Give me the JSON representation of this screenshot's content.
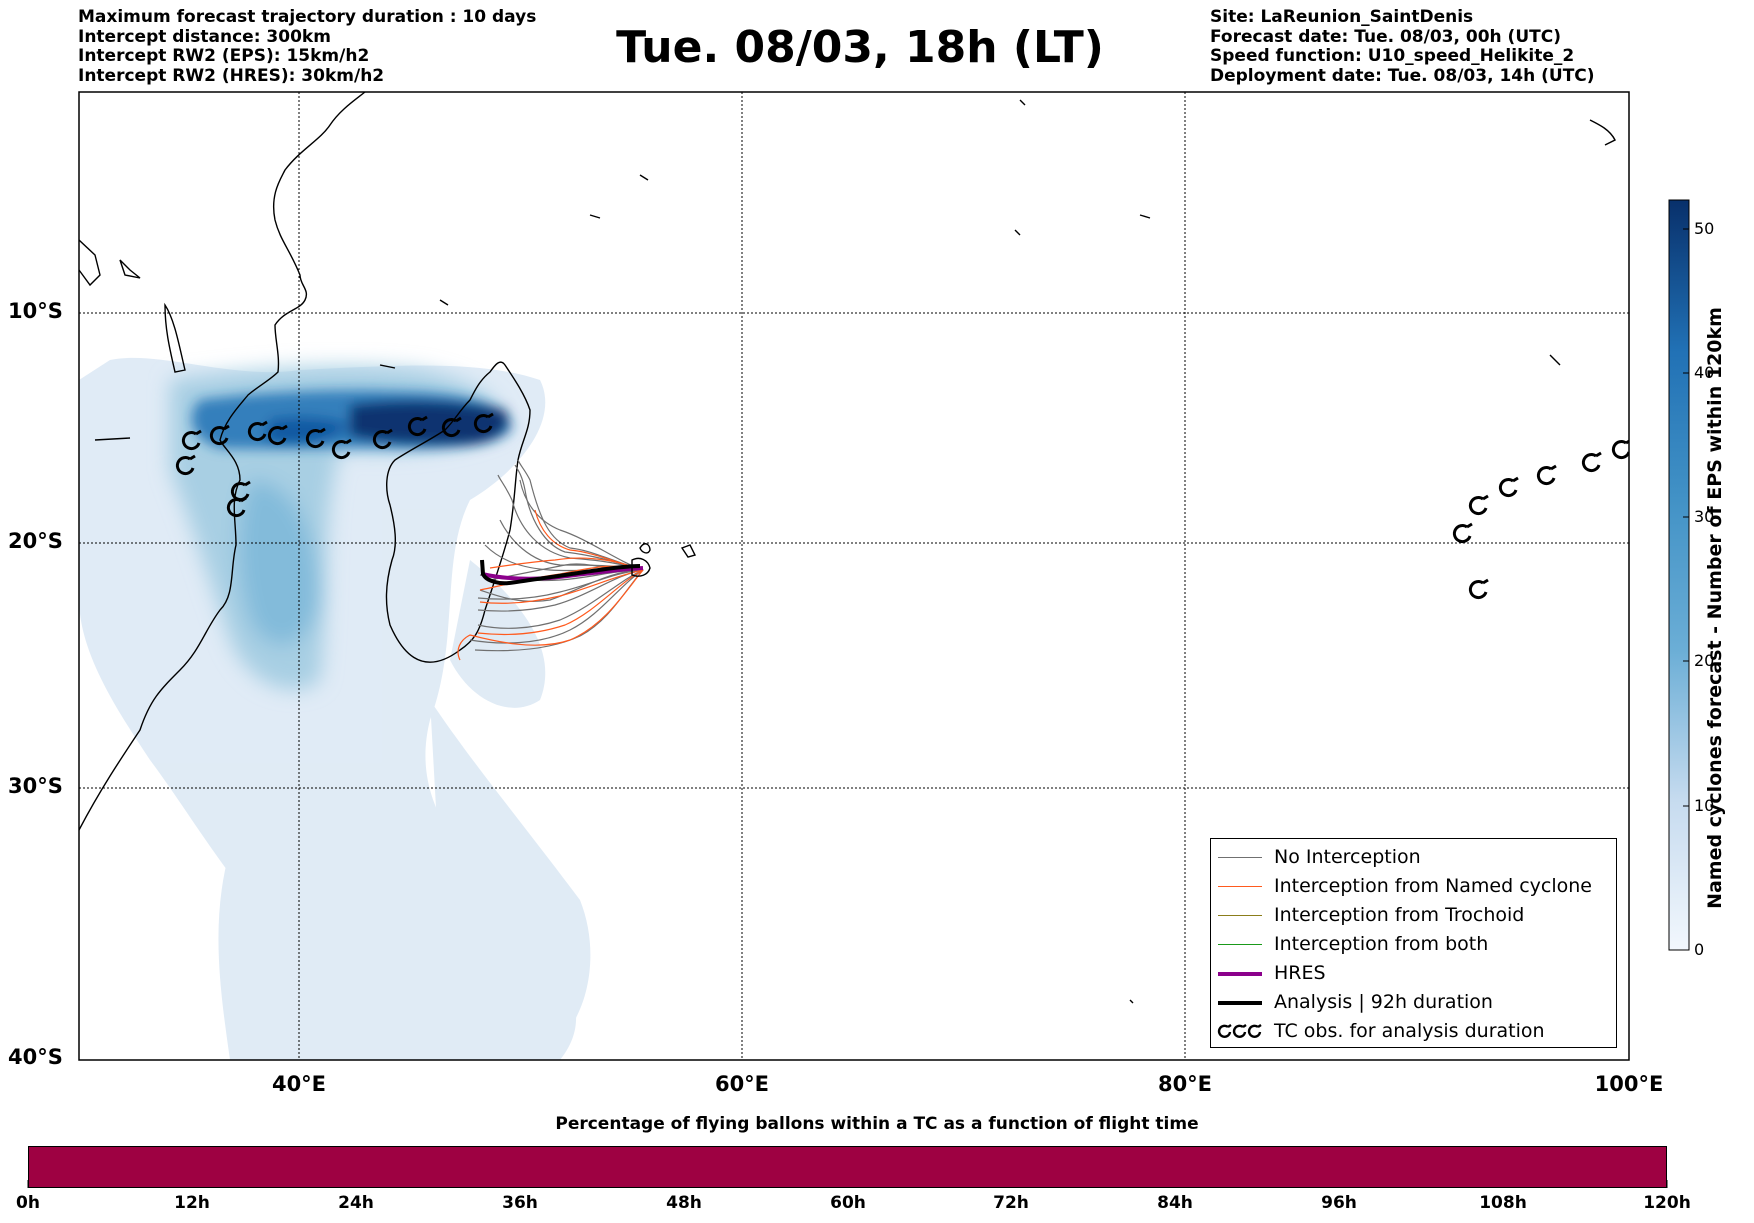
{
  "header": {
    "left_lines": [
      "Maximum forecast trajectory duration : 10 days",
      "Intercept distance: 300km",
      "Intercept RW2 (EPS):  15km/h2",
      "Intercept RW2 (HRES): 30km/h2"
    ],
    "title": "Tue. 08/03, 18h (LT)",
    "right_lines": [
      "Site: LaReunion_SaintDenis",
      "Forecast date: Tue. 08/03, 00h (UTC)",
      "Speed function: U10_speed_Helikite_2",
      "Deployment date: Tue. 08/03, 14h (UTC)"
    ]
  },
  "map": {
    "lat_labels": [
      "10°S",
      "20°S",
      "30°S",
      "40°S"
    ],
    "lon_labels": [
      "40°E",
      "60°E",
      "80°E",
      "100°E"
    ],
    "lon_range": [
      30,
      100
    ],
    "lat_range": [
      -40,
      0
    ],
    "colors": {
      "density_dark": "#08306b",
      "density_light": "#deebf7",
      "no_interception": "#707070",
      "named_cyclone": "#ff5a1e",
      "trochoid": "#8b7d1a",
      "both": "#1a9a1a",
      "hres": "#8b008b",
      "analysis": "#000000"
    }
  },
  "colorbar": {
    "ticks": [
      "0",
      "10",
      "20",
      "30",
      "40",
      "50"
    ],
    "label": "Named cyclones forecast - Number of EPS within 120km",
    "range": [
      0,
      52
    ]
  },
  "legend": {
    "items": [
      {
        "label": "No Interception",
        "color": "#707070",
        "width": 1.5
      },
      {
        "label": "Interception from Named cyclone",
        "color": "#ff5a1e",
        "width": 1.5
      },
      {
        "label": "Interception from Trochoid",
        "color": "#8b7d1a",
        "width": 1.5
      },
      {
        "label": "Interception from both",
        "color": "#1a9a1a",
        "width": 1.5
      },
      {
        "label": "HRES",
        "color": "#8b008b",
        "width": 4
      },
      {
        "label": "Analysis | 92h duration",
        "color": "#000000",
        "width": 4
      },
      {
        "label": "TC obs. for analysis duration",
        "glyph": "ʛʛʛ"
      }
    ]
  },
  "time_bar": {
    "title": "Percentage of flying ballons within a TC as a function of flight time",
    "ticks": [
      "0h",
      "12h",
      "24h",
      "36h",
      "48h",
      "60h",
      "72h",
      "84h",
      "96h",
      "108h",
      "120h"
    ],
    "fill_color": "#9e0142"
  }
}
